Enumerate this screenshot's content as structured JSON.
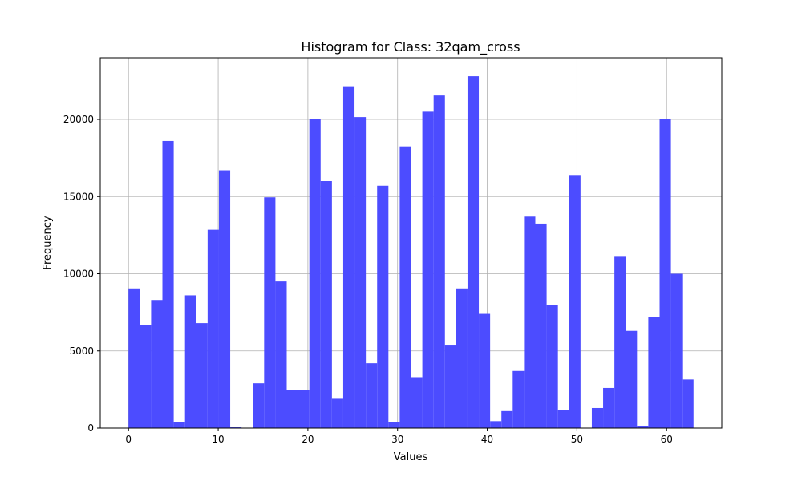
{
  "chart_data": {
    "type": "bar",
    "title": "Histogram for Class: 32qam_cross",
    "xlabel": "Values",
    "ylabel": "Frequency",
    "xlim": [
      -3.15,
      66.15
    ],
    "ylim": [
      0,
      24000
    ],
    "xticks": [
      0,
      10,
      20,
      30,
      40,
      50,
      60
    ],
    "yticks": [
      0,
      5000,
      10000,
      15000,
      20000
    ],
    "grid": true,
    "bar_color": "#4c4cff",
    "bin_range": [
      0,
      63
    ],
    "bin_count": 50,
    "values": [
      9050,
      6700,
      8300,
      18600,
      400,
      8600,
      6800,
      12850,
      16700,
      50,
      0,
      2900,
      14950,
      9500,
      2450,
      2450,
      20050,
      16000,
      1900,
      22150,
      20150,
      4200,
      15700,
      400,
      18250,
      3300,
      20500,
      21550,
      5400,
      9050,
      22800,
      7400,
      450,
      1100,
      3700,
      13700,
      13250,
      8000,
      1150,
      16400,
      0,
      1300,
      2600,
      11150,
      6300,
      150,
      7200,
      20000,
      10000,
      3150
    ]
  },
  "colors": {
    "bar": "#4c4cff",
    "bar_edge": "#0000ff",
    "grid": "#b0b0b0",
    "axis": "#000000"
  }
}
